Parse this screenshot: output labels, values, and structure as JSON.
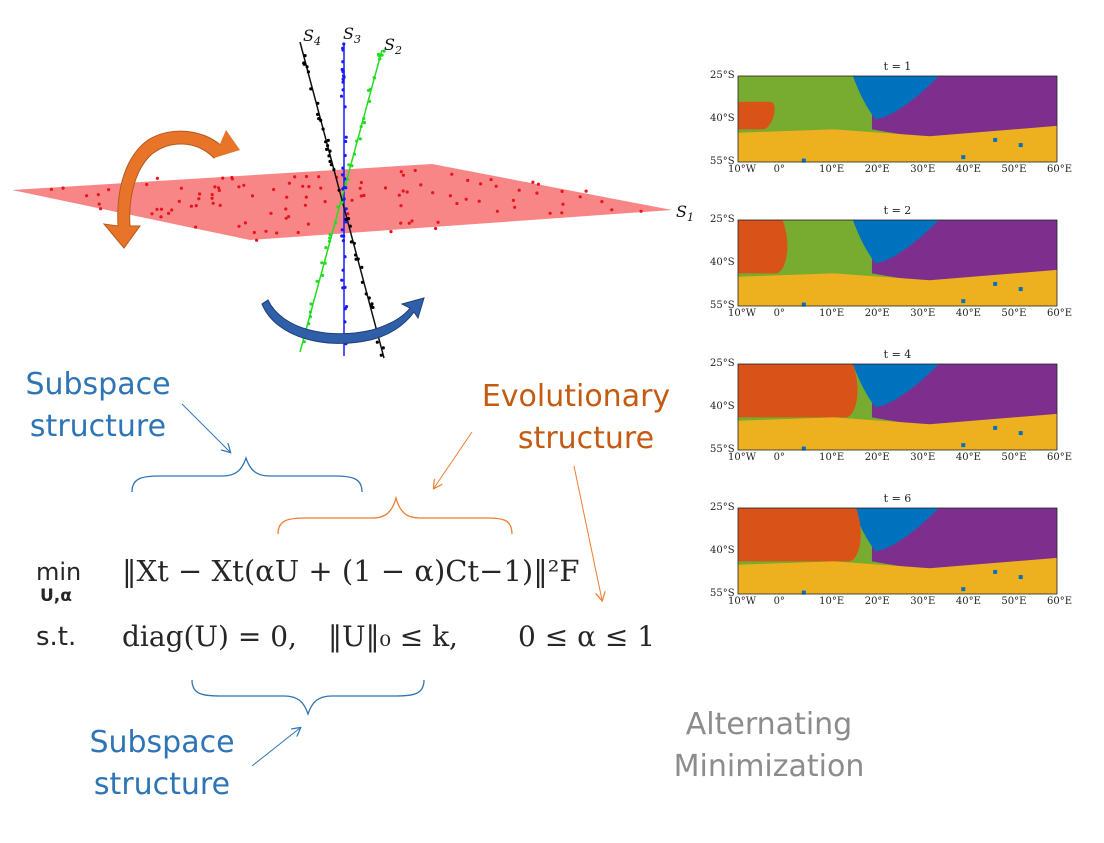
{
  "subspace_labels": {
    "S1": "S",
    "S1_sub": "1",
    "S2": "S",
    "S2_sub": "2",
    "S3": "S",
    "S3_sub": "3",
    "S4": "S",
    "S4_sub": "4"
  },
  "labels": {
    "subspace_top_line1": "Subspace",
    "subspace_top_line2": "structure",
    "evolutionary_line1": "Evolutionary",
    "evolutionary_line2": "structure",
    "subspace_bottom_line1": "Subspace",
    "subspace_bottom_line2": "structure",
    "alternating_line1": "Alternating",
    "alternating_line2": "Minimization"
  },
  "formula": {
    "min": "min",
    "min_sub": "U,α",
    "objective": "‖Xt − Xt(αU + (1 − α)Ct−1)‖²F",
    "st": "s.t.",
    "constraint1": "diag(U) = 0,",
    "constraint2": "‖U‖₀ ≤ k,",
    "constraint3": "0 ≤ α ≤ 1"
  },
  "maps": [
    {
      "title": "t = 1"
    },
    {
      "title": "t = 2"
    },
    {
      "title": "t = 4"
    },
    {
      "title": "t = 6"
    }
  ],
  "map_axes": {
    "y_ticks": [
      "25°S",
      "40°S",
      "55°S"
    ],
    "x_ticks": [
      "10°W",
      "0°",
      "10°E",
      "20°E",
      "30°E",
      "40°E",
      "50°E",
      "60°E"
    ]
  },
  "colors": {
    "plane": "#f87f7f",
    "points": "#e8141e",
    "line_s2": "#22dd22",
    "line_s3": "#1a1aff",
    "line_s4": "#000000",
    "arrow_orange": "#e8742a",
    "arrow_blue": "#2f5fa8",
    "brace_blue": "#2e75b6",
    "brace_orange": "#ed7d31",
    "map_green": "#77ac30",
    "map_purple": "#7e2f8e",
    "map_blue": "#0072bd",
    "map_red": "#d95319",
    "map_yellow": "#edb120"
  }
}
